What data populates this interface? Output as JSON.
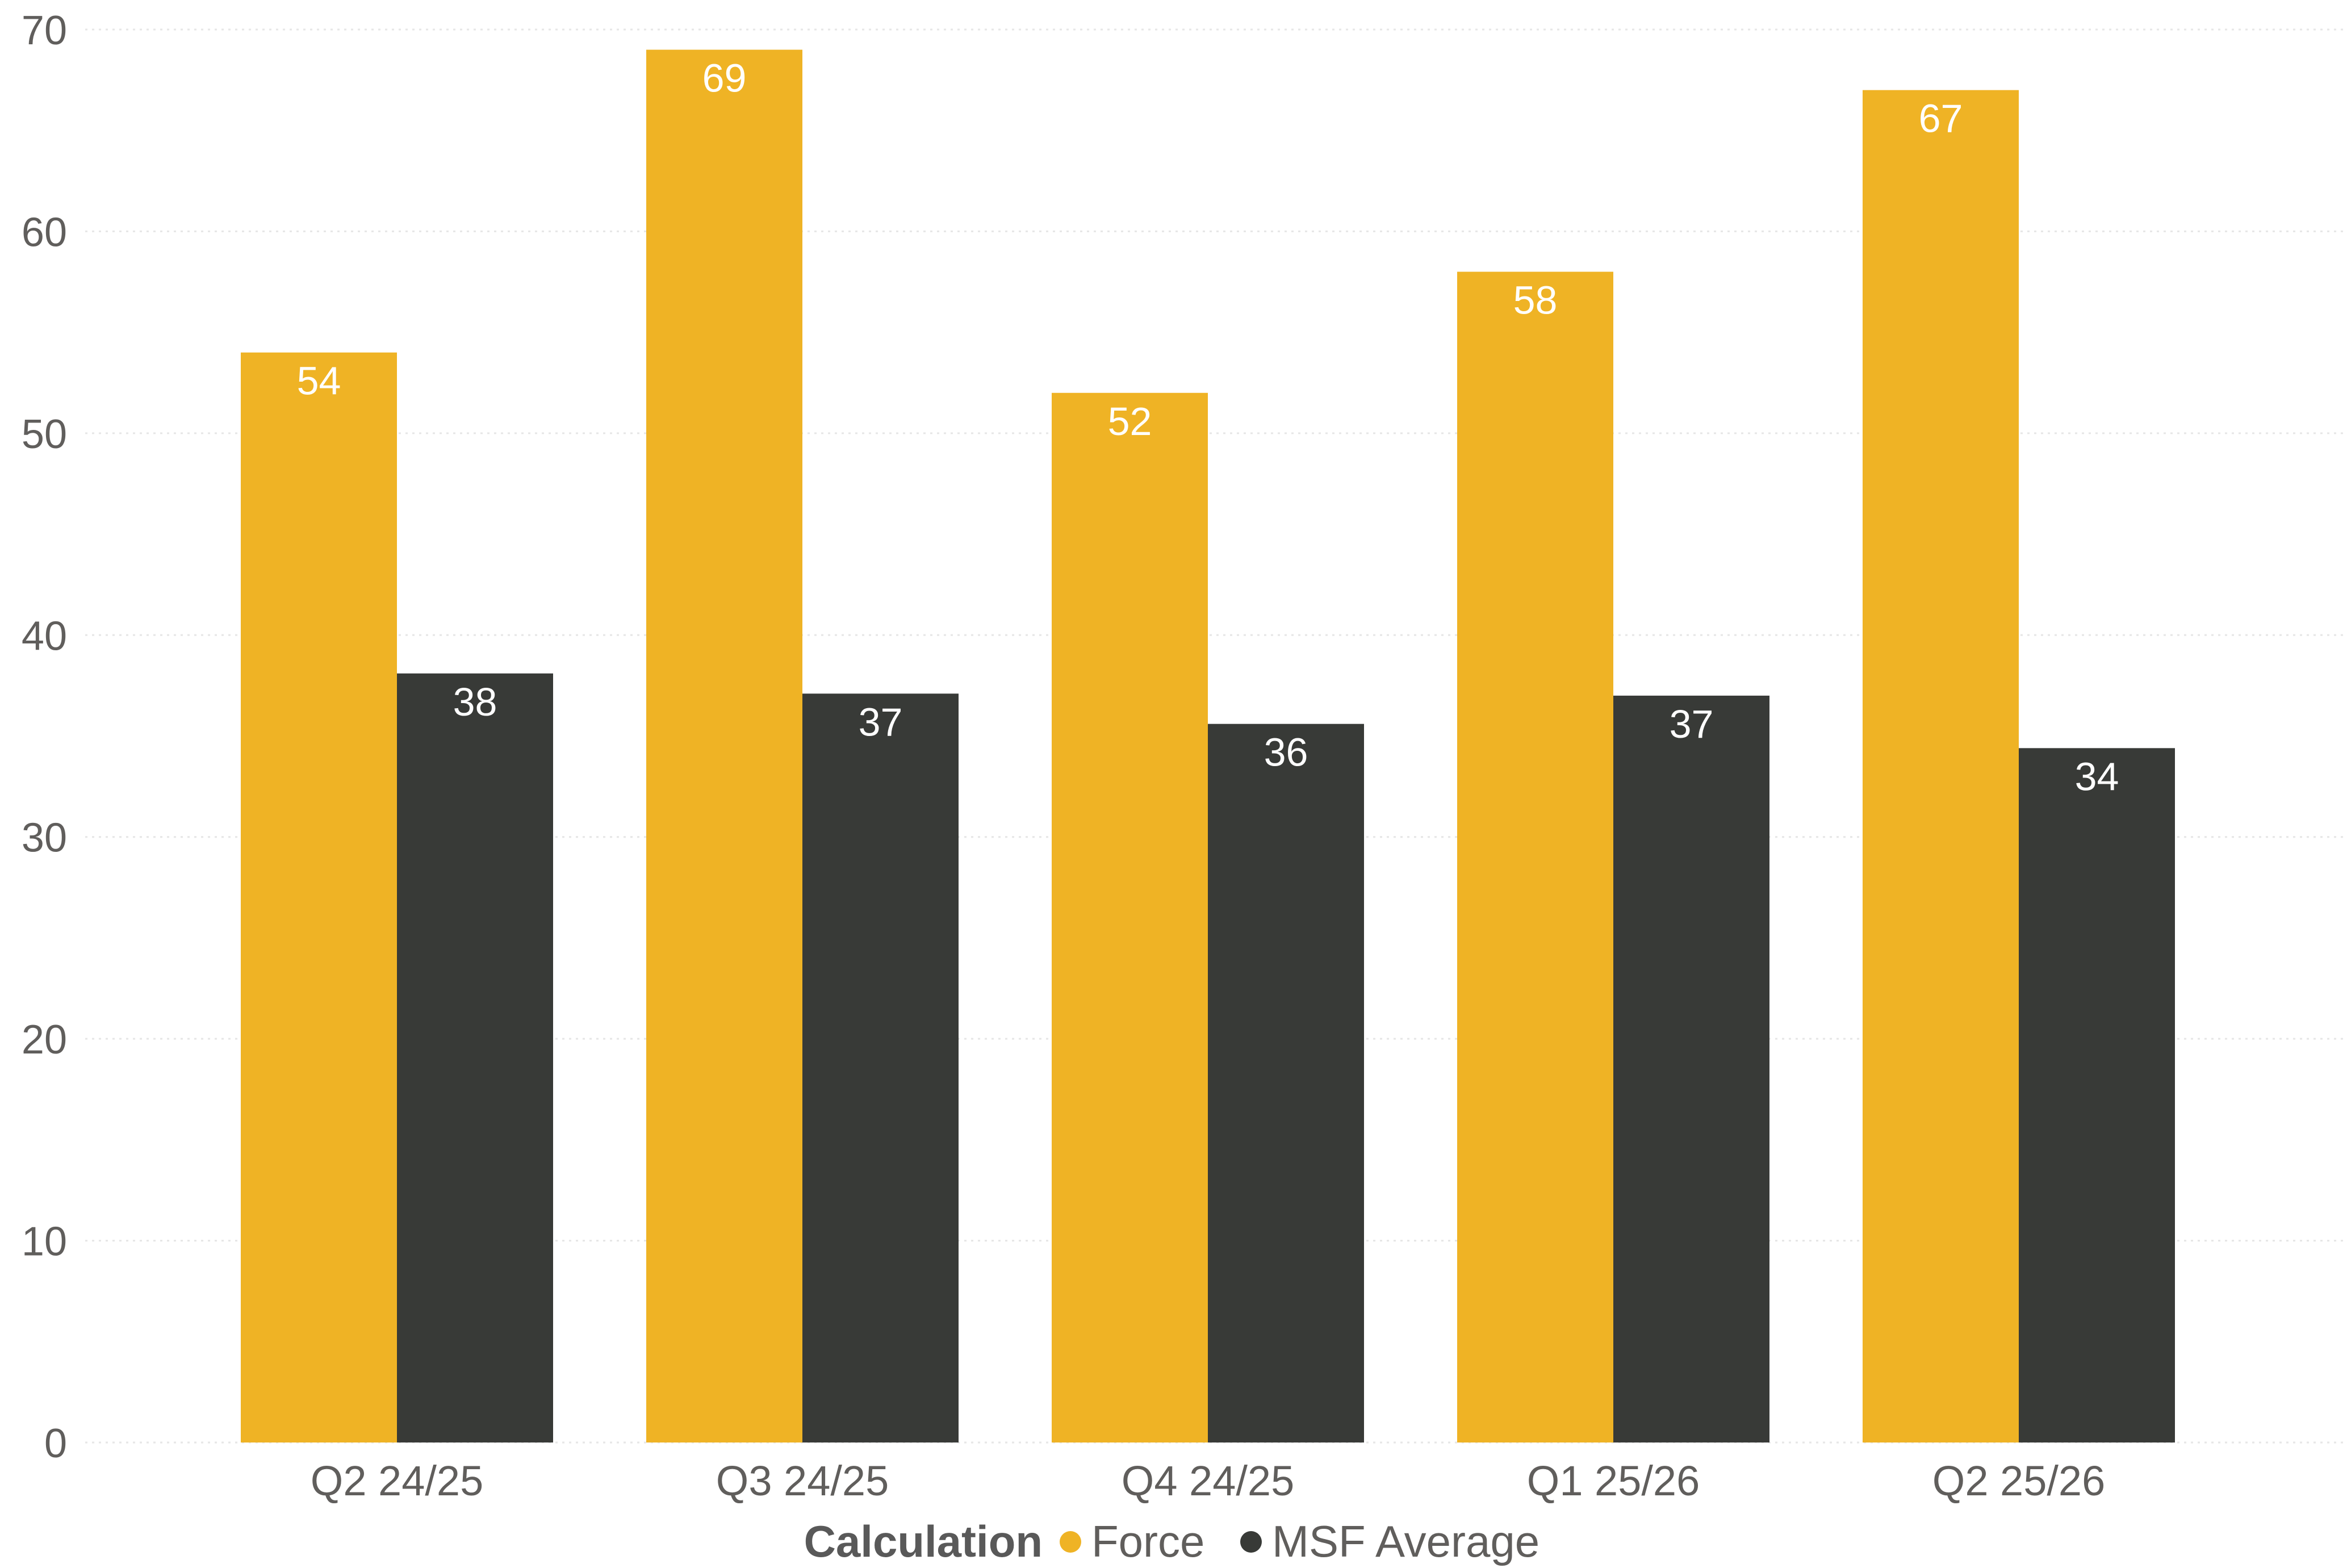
{
  "chart_data": {
    "type": "bar",
    "categories": [
      "Q2 24/25",
      "Q3 24/25",
      "Q4 24/25",
      "Q1 25/26",
      "Q2 25/26"
    ],
    "series": [
      {
        "name": "Force",
        "values": [
          54,
          69,
          52,
          58,
          67
        ],
        "labels": [
          "54",
          "69",
          "52",
          "58",
          "67"
        ],
        "color": "#EFB325"
      },
      {
        "name": "MSF Average",
        "values": [
          38.1,
          37.1,
          35.6,
          37.0,
          34.4
        ],
        "labels": [
          "38",
          "37",
          "36",
          "37",
          "34"
        ],
        "color": "#383A37"
      }
    ],
    "ylim": [
      0,
      70
    ],
    "yticks": [
      "0",
      "10",
      "20",
      "30",
      "40",
      "50",
      "60",
      "70"
    ],
    "grid": true,
    "legend": {
      "title": "Calculation",
      "position": "bottom-center"
    }
  }
}
